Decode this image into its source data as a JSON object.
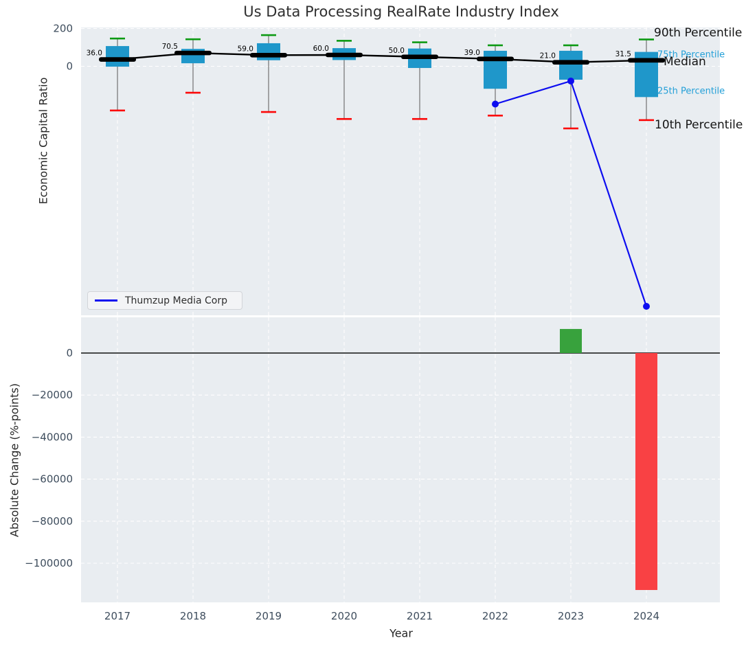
{
  "title": "Us Data Processing RealRate Industry Index",
  "xlabel": "Year",
  "legend": {
    "series_label": "Thumzup Media Corp"
  },
  "annotations": {
    "p90": "90th Percentile",
    "p75": "75th Percentile",
    "median": "Median",
    "p25": "25th Percentile",
    "p10": "10th Percentile"
  },
  "colors": {
    "plot_bg": "#e9edf1",
    "grid": "#ffffff",
    "box_fill": "#1f97ca",
    "whisker": "#7a7a7a",
    "cap_high": "#0c9a12",
    "cap_low": "#fc0606",
    "median_line": "#000000",
    "company": "#0d0df0",
    "bar_positive": "#38a23d",
    "bar_negative": "#f94144",
    "tick_label": "#3e4d5d",
    "accent": "#24a0d8",
    "zero_line": "#111111"
  },
  "chart_data": [
    {
      "type": "boxplot+line",
      "title": "Us Data Processing RealRate Industry Index",
      "ylabel": "Economic Capital Ratio",
      "categories": [
        "2017",
        "2018",
        "2019",
        "2020",
        "2021",
        "2022",
        "2023",
        "2024"
      ],
      "yticks": [
        200,
        0
      ],
      "ylim": [
        -1318,
        200
      ],
      "grid": true,
      "box_stats": {
        "p90": [
          147,
          143,
          165,
          135,
          127,
          111,
          111,
          142
        ],
        "p75": [
          107,
          92,
          122,
          96,
          94,
          82,
          82,
          76
        ],
        "median": [
          36.0,
          70.5,
          59.0,
          60.0,
          50.0,
          39.0,
          21.0,
          31.5
        ],
        "p25": [
          -2,
          16,
          32,
          33,
          -9,
          -119,
          -71,
          -163
        ],
        "p10": [
          -234,
          -140,
          -242,
          -279,
          -279,
          -261,
          -329,
          -285
        ]
      },
      "median_labels": [
        "36.0",
        "70.5",
        "59.0",
        "60.0",
        "50.0",
        "39.0",
        "21.0",
        "31.5"
      ],
      "series": [
        {
          "name": "Thumzup Media Corp",
          "x": [
            "2022",
            "2023",
            "2024"
          ],
          "values": [
            -200,
            -78,
            -1271
          ]
        }
      ],
      "legend_position": "lower left"
    },
    {
      "type": "bar",
      "ylabel": "Absolute Change (%-points)",
      "xlabel": "Year",
      "categories": [
        "2017",
        "2018",
        "2019",
        "2020",
        "2021",
        "2022",
        "2023",
        "2024"
      ],
      "values": [
        null,
        null,
        null,
        null,
        null,
        null,
        11450,
        -112750
      ],
      "yticks": [
        0,
        -20000,
        -40000,
        -60000,
        -80000,
        -100000
      ],
      "ylim": [
        -118600,
        17000
      ],
      "grid": true
    }
  ]
}
